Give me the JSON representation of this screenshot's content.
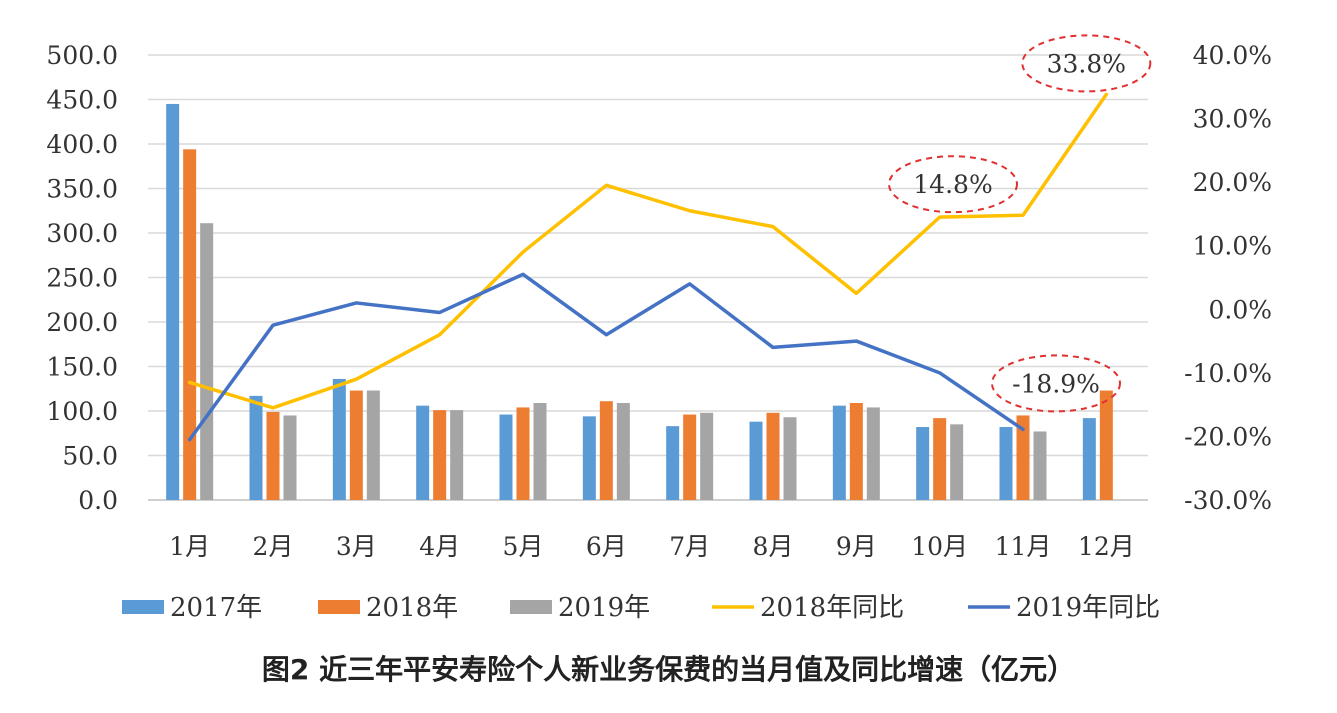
{
  "caption": "图2  近三年平安寿险个人新业务保费的当月值及同比增速（亿元）",
  "chart_data": {
    "type": "bar",
    "categories": [
      "1月",
      "2月",
      "3月",
      "4月",
      "5月",
      "6月",
      "7月",
      "8月",
      "9月",
      "10月",
      "11月",
      "12月"
    ],
    "series": [
      {
        "name": "2017年",
        "kind": "bar",
        "axis": "left",
        "color": "#5B9BD5",
        "values": [
          445,
          117,
          136,
          106,
          96,
          94,
          83,
          88,
          106,
          82,
          82,
          92
        ]
      },
      {
        "name": "2018年",
        "kind": "bar",
        "axis": "left",
        "color": "#ED7D31",
        "values": [
          394,
          99,
          123,
          101,
          104,
          111,
          96,
          98,
          109,
          92,
          95,
          123
        ]
      },
      {
        "name": "2019年",
        "kind": "bar",
        "axis": "left",
        "color": "#A5A5A5",
        "values": [
          311,
          95,
          123,
          101,
          109,
          109,
          98,
          93,
          104,
          85,
          77,
          null
        ]
      },
      {
        "name": "2018年同比",
        "kind": "line",
        "axis": "right",
        "color": "#FFC000",
        "values": [
          -11.5,
          -15.5,
          -11.0,
          -4.0,
          9.0,
          19.5,
          15.5,
          13.0,
          2.5,
          14.5,
          14.8,
          33.8
        ]
      },
      {
        "name": "2019年同比",
        "kind": "line",
        "axis": "right",
        "color": "#4472C4",
        "values": [
          -20.5,
          -2.5,
          1.0,
          -0.5,
          5.5,
          -4.0,
          4.0,
          -6.0,
          -5.0,
          -10.0,
          -18.9,
          null
        ]
      }
    ],
    "y_left": {
      "min": 0,
      "max": 500,
      "step": 50,
      "tick_labels": [
        "0.0",
        "50.0",
        "100.0",
        "150.0",
        "200.0",
        "250.0",
        "300.0",
        "350.0",
        "400.0",
        "450.0",
        "500.0"
      ]
    },
    "y_right": {
      "min": -30,
      "max": 40,
      "step": 10,
      "tick_labels": [
        "-30.0%",
        "-20.0%",
        "-10.0%",
        "0.0%",
        "10.0%",
        "20.0%",
        "30.0%",
        "40.0%"
      ]
    },
    "annotations": [
      {
        "text": "33.8%",
        "series": "2018年同比",
        "category": "12月",
        "value": 33.8
      },
      {
        "text": "14.8%",
        "series": "2018年同比",
        "category": "11月",
        "value": 14.8
      },
      {
        "text": "-18.9%",
        "series": "2019年同比",
        "category": "11月",
        "value": -18.9
      }
    ],
    "grid": true,
    "legend": "bottom"
  }
}
